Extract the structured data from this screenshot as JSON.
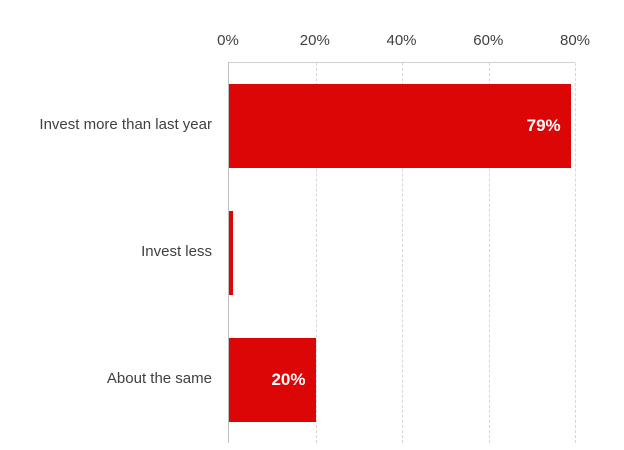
{
  "chart_data": {
    "type": "bar",
    "orientation": "horizontal",
    "title": "",
    "xlabel": "",
    "ylabel": "",
    "categories": [
      "Invest more than last year",
      "Invest less",
      "About the same"
    ],
    "values": [
      79,
      1,
      20
    ],
    "data_labels": [
      "79%",
      "",
      "20%"
    ],
    "tick_labels": [
      "0%",
      "20%",
      "40%",
      "60%",
      "80%"
    ],
    "xlim": [
      0,
      80
    ],
    "grid": "vertical-dashed",
    "legend": "none",
    "bar_color": "#dc0606",
    "data_label_color": "#ffffff",
    "axis_text_color": "#404040",
    "gridline_color": "#d6d6d6"
  }
}
